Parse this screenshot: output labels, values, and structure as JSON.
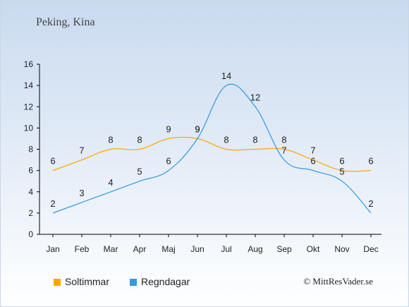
{
  "title": "Peking, Kina",
  "copyright": "© MittResVader.se",
  "colors": {
    "sun": "#ffa500",
    "rain": "#3399e0",
    "axis": "#000000"
  },
  "chart_data": {
    "type": "line",
    "categories": [
      "Jan",
      "Feb",
      "Mar",
      "Apr",
      "Maj",
      "Jun",
      "Jul",
      "Aug",
      "Sep",
      "Okt",
      "Nov",
      "Dec"
    ],
    "ylim": [
      0,
      16
    ],
    "yticks": [
      0,
      2,
      4,
      6,
      8,
      10,
      12,
      14,
      16
    ],
    "grid": false,
    "legend_position": "bottom-left",
    "series": [
      {
        "name": "Soltimmar",
        "color": "#ffa500",
        "values": [
          6,
          7,
          8,
          8,
          9,
          9,
          8,
          8,
          8,
          7,
          6,
          6
        ]
      },
      {
        "name": "Regndagar",
        "color": "#3399e0",
        "values": [
          2,
          3,
          4,
          5,
          6,
          9,
          14,
          12,
          7,
          6,
          5,
          2
        ]
      }
    ]
  }
}
